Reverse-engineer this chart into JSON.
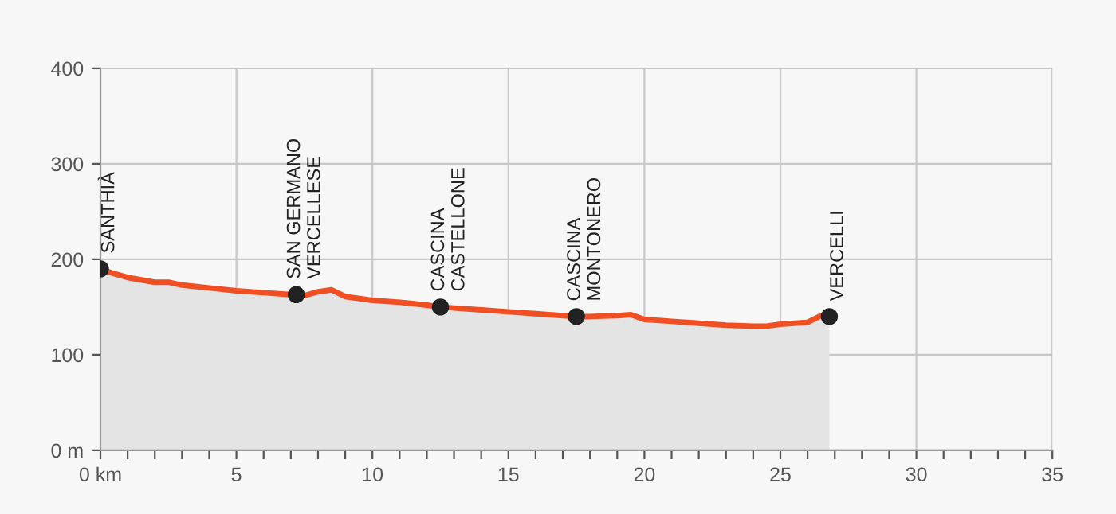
{
  "chart_data": {
    "type": "area",
    "xlim": [
      0,
      35
    ],
    "ylim": [
      0,
      400
    ],
    "xticks": [
      {
        "value": 0,
        "label": "0 km"
      },
      {
        "value": 1,
        "label": null
      },
      {
        "value": 2,
        "label": null
      },
      {
        "value": 3,
        "label": null
      },
      {
        "value": 4,
        "label": null
      },
      5,
      {
        "value": 6,
        "label": null
      },
      {
        "value": 7,
        "label": null
      },
      {
        "value": 8,
        "label": null
      },
      {
        "value": 9,
        "label": null
      },
      10,
      {
        "value": 11,
        "label": null
      },
      {
        "value": 12,
        "label": null
      },
      {
        "value": 13,
        "label": null
      },
      {
        "value": 14,
        "label": null
      },
      15,
      {
        "value": 16,
        "label": null
      },
      {
        "value": 17,
        "label": null
      },
      {
        "value": 18,
        "label": null
      },
      {
        "value": 19,
        "label": null
      },
      20,
      {
        "value": 21,
        "label": null
      },
      {
        "value": 22,
        "label": null
      },
      {
        "value": 23,
        "label": null
      },
      {
        "value": 24,
        "label": null
      },
      25,
      {
        "value": 26,
        "label": null
      },
      {
        "value": 27,
        "label": null
      },
      {
        "value": 28,
        "label": null
      },
      {
        "value": 29,
        "label": null
      },
      30,
      {
        "value": 31,
        "label": null
      },
      {
        "value": 32,
        "label": null
      },
      {
        "value": 33,
        "label": null
      },
      {
        "value": 34,
        "label": null
      },
      35
    ],
    "yticks": [
      {
        "value": 0,
        "label": "0 m"
      },
      100,
      200,
      300,
      400
    ],
    "grid": true,
    "legend": false,
    "series": [
      {
        "color": "#f04e23",
        "x": [
          0,
          0.5,
          1,
          2,
          2.5,
          3,
          4,
          5,
          6,
          7,
          7.2,
          7.5,
          8,
          8.5,
          9,
          10,
          11,
          12,
          12.5,
          13,
          14,
          15,
          16,
          17,
          17.5,
          18,
          19,
          19.5,
          20,
          21,
          22,
          23,
          24,
          24.5,
          25,
          26,
          26.5,
          26.8
        ],
        "values": [
          190,
          185,
          181,
          176,
          176,
          173,
          170,
          167,
          165,
          163,
          163,
          162,
          166,
          168,
          161,
          157,
          155,
          152,
          150,
          149,
          147,
          145,
          143,
          141,
          140,
          140,
          141,
          142,
          137,
          135,
          133,
          131,
          130,
          130,
          132,
          134,
          141,
          140
        ]
      },
      {
        "type": "scatter",
        "color": "#222222",
        "marker": "circle",
        "x": [
          0,
          7.2,
          12.5,
          17.5,
          26.8
        ],
        "values": [
          190,
          163,
          150,
          140,
          140
        ]
      }
    ],
    "annotations": [
      {
        "text": "SANTHIÀ",
        "x": 0,
        "y": 190
      },
      {
        "text": "SAN GERMANO\nVERCELLESE",
        "x": 7.2,
        "y": 163
      },
      {
        "text": "CASCINA\nCASTELLONE",
        "x": 12.5,
        "y": 150
      },
      {
        "text": "CASCINA\nMONTONERO",
        "x": 17.5,
        "y": 140
      },
      {
        "text": "VERCELLI",
        "x": 26.8,
        "y": 140
      }
    ]
  }
}
